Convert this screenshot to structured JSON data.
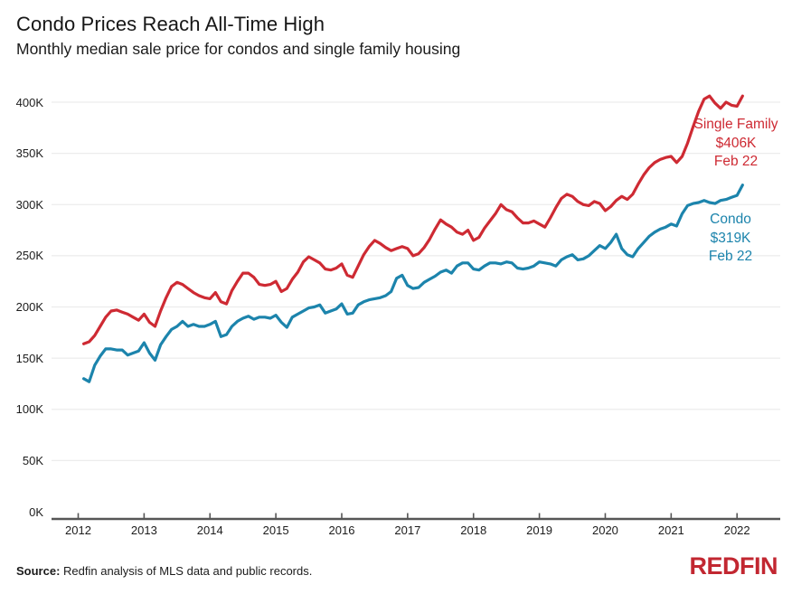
{
  "header": {
    "title": "Condo Prices Reach All-Time High",
    "subtitle": "Monthly median sale price for condos and single family housing"
  },
  "annotations": {
    "single_family": {
      "lines": [
        "Single Family",
        "$406K",
        "Feb 22"
      ],
      "color": "#ce2a33"
    },
    "condo": {
      "lines": [
        "Condo",
        "$319K",
        "Feb 22"
      ],
      "color": "#1c84ac"
    }
  },
  "footer": {
    "source_label": "Source:",
    "source_text": "Redfin analysis of MLS data and public records.",
    "logo": "REDFIN",
    "logo_color": "#c22731"
  },
  "chart_data": {
    "type": "line",
    "title": "Condo Prices Reach All-Time High",
    "subtitle": "Monthly median sale price for condos and single family housing",
    "unit": "USD thousands",
    "x_start": "2012-02",
    "x_end": "2022-02",
    "x_tick_labels": [
      "2012",
      "2013",
      "2014",
      "2015",
      "2016",
      "2017",
      "2018",
      "2019",
      "2020",
      "2021",
      "2022"
    ],
    "y_tick_labels": [
      "0K",
      "50K",
      "100K",
      "150K",
      "200K",
      "250K",
      "300K",
      "350K",
      "400K"
    ],
    "y_tick_values": [
      0,
      50,
      100,
      150,
      200,
      250,
      300,
      350,
      400
    ],
    "ylim": [
      0,
      420
    ],
    "grid": "horizontal",
    "legend_position": "inline-annotations",
    "series": [
      {
        "name": "Single Family",
        "color": "#ce2a33",
        "latest_label": "$406K Feb 22",
        "values": [
          164,
          166,
          172,
          181,
          190,
          196,
          197,
          195,
          193,
          190,
          187,
          193,
          185,
          181,
          196,
          209,
          220,
          224,
          222,
          218,
          214,
          211,
          209,
          208,
          214,
          205,
          203,
          216,
          225,
          233,
          233,
          229,
          222,
          221,
          222,
          225,
          215,
          218,
          227,
          234,
          244,
          249,
          246,
          243,
          237,
          236,
          238,
          242,
          231,
          229,
          240,
          251,
          259,
          265,
          262,
          258,
          255,
          257,
          259,
          257,
          250,
          252,
          258,
          266,
          276,
          285,
          281,
          278,
          273,
          271,
          275,
          265,
          268,
          277,
          284,
          291,
          300,
          295,
          293,
          287,
          282,
          282,
          284,
          281,
          278,
          287,
          297,
          306,
          310,
          308,
          303,
          300,
          299,
          303,
          301,
          294,
          298,
          304,
          308,
          305,
          310,
          320,
          329,
          336,
          341,
          344,
          346,
          347,
          341,
          347,
          360,
          376,
          391,
          403,
          406,
          399,
          394,
          400,
          397,
          396,
          406
        ]
      },
      {
        "name": "Condo",
        "color": "#1c84ac",
        "latest_label": "$319K Feb 22",
        "values": [
          130,
          127,
          143,
          152,
          159,
          159,
          158,
          158,
          153,
          155,
          157,
          165,
          155,
          148,
          163,
          171,
          178,
          181,
          186,
          181,
          183,
          181,
          181,
          183,
          186,
          171,
          173,
          181,
          186,
          189,
          191,
          188,
          190,
          190,
          189,
          192,
          185,
          180,
          190,
          193,
          196,
          199,
          200,
          202,
          194,
          196,
          198,
          203,
          193,
          194,
          202,
          205,
          207,
          208,
          209,
          211,
          215,
          228,
          231,
          221,
          218,
          219,
          224,
          227,
          230,
          234,
          236,
          233,
          240,
          243,
          243,
          237,
          236,
          240,
          243,
          243,
          242,
          244,
          243,
          238,
          237,
          238,
          240,
          244,
          243,
          242,
          240,
          246,
          249,
          251,
          246,
          247,
          250,
          255,
          260,
          257,
          263,
          271,
          257,
          251,
          249,
          257,
          263,
          269,
          273,
          276,
          278,
          281,
          279,
          291,
          299,
          301,
          302,
          304,
          302,
          301,
          304,
          305,
          307,
          309,
          319
        ]
      }
    ]
  }
}
